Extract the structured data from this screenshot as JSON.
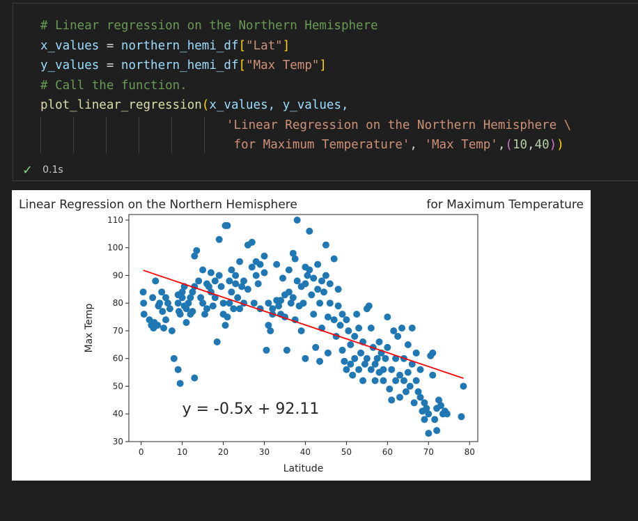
{
  "cell": {
    "line1": "# Linear regression on the Northern Hemisphere",
    "line2": {
      "var": "x_values",
      "eq": " = ",
      "obj": "northern_hemi_df",
      "open": "[",
      "key": "\"Lat\"",
      "close": "]"
    },
    "line3": {
      "var": "y_values",
      "eq": " = ",
      "obj": "northern_hemi_df",
      "open": "[",
      "key": "\"Max Temp\"",
      "close": "]"
    },
    "line4": "# Call the function.",
    "line5": {
      "fn": "plot_linear_regression",
      "open": "(",
      "args": "x_values, y_values,"
    },
    "line6": "'Linear Regression on the Northern Hemisphere \\",
    "line7": {
      "str": " for Maximum Temperature'",
      "sep1": ", ",
      "str2": "'Max Temp'",
      "sep2": ",",
      "open": "(",
      "n1": "10",
      "comma": ",",
      "n2": "40",
      "close1": ")",
      "close2": ")"
    },
    "status_check": "✓",
    "exec_time": "0.1s"
  },
  "chart_data": {
    "type": "scatter",
    "title_left": "Linear Regression on the Northern Hemisphere",
    "title_right": "for Maximum Temperature",
    "xlabel": "Latitude",
    "ylabel": "Max Temp",
    "xlim": [
      -3,
      82
    ],
    "ylim": [
      30,
      112
    ],
    "xticks": [
      0,
      10,
      20,
      30,
      40,
      50,
      60,
      70,
      80
    ],
    "yticks": [
      30,
      40,
      50,
      60,
      70,
      80,
      90,
      100,
      110
    ],
    "point_color": "#1f77b4",
    "line_color": "#ff0000",
    "regression": {
      "slope": -0.5,
      "intercept": 92.11,
      "x_start": 0.5,
      "x_end": 78.5
    },
    "equation": "y = -0.5x + 92.11",
    "equation_pos": [
      10,
      40
    ],
    "points": [
      [
        0.5,
        84
      ],
      [
        0.6,
        80
      ],
      [
        0.7,
        76
      ],
      [
        2,
        74
      ],
      [
        2.5,
        72
      ],
      [
        3,
        71
      ],
      [
        3.2,
        73
      ],
      [
        2.8,
        82
      ],
      [
        3.5,
        88
      ],
      [
        4,
        72
      ],
      [
        4.2,
        79
      ],
      [
        4.5,
        80
      ],
      [
        5,
        84
      ],
      [
        5.2,
        77
      ],
      [
        5.5,
        71
      ],
      [
        6,
        82
      ],
      [
        6,
        74
      ],
      [
        6.5,
        80
      ],
      [
        7,
        78
      ],
      [
        7.5,
        70
      ],
      [
        8,
        60
      ],
      [
        9,
        56
      ],
      [
        9.5,
        51
      ],
      [
        9,
        83
      ],
      [
        9,
        80
      ],
      [
        9.2,
        77
      ],
      [
        9.5,
        76
      ],
      [
        10,
        84
      ],
      [
        10,
        82
      ],
      [
        10.5,
        86
      ],
      [
        10.5,
        79
      ],
      [
        11,
        78
      ],
      [
        11,
        73
      ],
      [
        11.5,
        80
      ],
      [
        12,
        82
      ],
      [
        12,
        76
      ],
      [
        12.5,
        84
      ],
      [
        12.5,
        77
      ],
      [
        13,
        86
      ],
      [
        13,
        97
      ],
      [
        13.5,
        99
      ],
      [
        13,
        53
      ],
      [
        14,
        88
      ],
      [
        14.5,
        82
      ],
      [
        15,
        92
      ],
      [
        15,
        80
      ],
      [
        15.5,
        76
      ],
      [
        16,
        87
      ],
      [
        16,
        78
      ],
      [
        16.5,
        86
      ],
      [
        17,
        91
      ],
      [
        17,
        84
      ],
      [
        17.5,
        79
      ],
      [
        18,
        88
      ],
      [
        18,
        82
      ],
      [
        18.5,
        66
      ],
      [
        19,
        103
      ],
      [
        19,
        90
      ],
      [
        19.5,
        86
      ],
      [
        20,
        80
      ],
      [
        20,
        76
      ],
      [
        20.5,
        108
      ],
      [
        21,
        108
      ],
      [
        20.5,
        72
      ],
      [
        21,
        75
      ],
      [
        21.5,
        88
      ],
      [
        21.5,
        80
      ],
      [
        22,
        92
      ],
      [
        22,
        84
      ],
      [
        22.5,
        78
      ],
      [
        23,
        90
      ],
      [
        23,
        87
      ],
      [
        23.5,
        82
      ],
      [
        24,
        95
      ],
      [
        24,
        78
      ],
      [
        24.5,
        86
      ],
      [
        25,
        88
      ],
      [
        25,
        80
      ],
      [
        26,
        101
      ],
      [
        26,
        85
      ],
      [
        27,
        102
      ],
      [
        27,
        93
      ],
      [
        27.5,
        80
      ],
      [
        28,
        95
      ],
      [
        28,
        90
      ],
      [
        28.5,
        87
      ],
      [
        29,
        94
      ],
      [
        29,
        78
      ],
      [
        30,
        97
      ],
      [
        30,
        91
      ],
      [
        30.5,
        63
      ],
      [
        31,
        80
      ],
      [
        31,
        72
      ],
      [
        31.5,
        70
      ],
      [
        32,
        78
      ],
      [
        32,
        76
      ],
      [
        33,
        94
      ],
      [
        33,
        81
      ],
      [
        33.5,
        79
      ],
      [
        34,
        81
      ],
      [
        34,
        76
      ],
      [
        34.5,
        89
      ],
      [
        35,
        83
      ],
      [
        35,
        75
      ],
      [
        35.5,
        63
      ],
      [
        36,
        92
      ],
      [
        36,
        84
      ],
      [
        36.5,
        80
      ],
      [
        37,
        98
      ],
      [
        37,
        82
      ],
      [
        37.5,
        96
      ],
      [
        37.5,
        74
      ],
      [
        38,
        110
      ],
      [
        38,
        88
      ],
      [
        38.5,
        79
      ],
      [
        39,
        86
      ],
      [
        39,
        70
      ],
      [
        39.5,
        80
      ],
      [
        40,
        93
      ],
      [
        40,
        87
      ],
      [
        40,
        60
      ],
      [
        40.5,
        90
      ],
      [
        41,
        106
      ],
      [
        41,
        92
      ],
      [
        41.5,
        83
      ],
      [
        42,
        89
      ],
      [
        42,
        76
      ],
      [
        42.5,
        64
      ],
      [
        43,
        94
      ],
      [
        43,
        85
      ],
      [
        43.5,
        80
      ],
      [
        43.5,
        59
      ],
      [
        44,
        88
      ],
      [
        44,
        71
      ],
      [
        44.5,
        84
      ],
      [
        45,
        101
      ],
      [
        45,
        90
      ],
      [
        45.5,
        75
      ],
      [
        45.5,
        62
      ],
      [
        46,
        87
      ],
      [
        46,
        80
      ],
      [
        47,
        96
      ],
      [
        47,
        74
      ],
      [
        47.5,
        68
      ],
      [
        48,
        85
      ],
      [
        48,
        79
      ],
      [
        48.5,
        72
      ],
      [
        49,
        76
      ],
      [
        49,
        63
      ],
      [
        49.5,
        59
      ],
      [
        50,
        74
      ],
      [
        50,
        56
      ],
      [
        50.5,
        70
      ],
      [
        51,
        65
      ],
      [
        51,
        58
      ],
      [
        51.5,
        54
      ],
      [
        52,
        68
      ],
      [
        52,
        60
      ],
      [
        52.5,
        76
      ],
      [
        53,
        71
      ],
      [
        53,
        56
      ],
      [
        53.5,
        62
      ],
      [
        54,
        66
      ],
      [
        54,
        52
      ],
      [
        54.5,
        58
      ],
      [
        55,
        78
      ],
      [
        55,
        60
      ],
      [
        55.5,
        79
      ],
      [
        56,
        71
      ],
      [
        56,
        56
      ],
      [
        56.5,
        64
      ],
      [
        57,
        58
      ],
      [
        57,
        52
      ],
      [
        57.5,
        60
      ],
      [
        58,
        66
      ],
      [
        58,
        55
      ],
      [
        58.5,
        62
      ],
      [
        59,
        56
      ],
      [
        59,
        52
      ],
      [
        59.5,
        60
      ],
      [
        60,
        75
      ],
      [
        60,
        64
      ],
      [
        60.5,
        49
      ],
      [
        61,
        56
      ],
      [
        61,
        45
      ],
      [
        61.5,
        70
      ],
      [
        62,
        60
      ],
      [
        62,
        52
      ],
      [
        62.5,
        68
      ],
      [
        63,
        54
      ],
      [
        63,
        46
      ],
      [
        63.5,
        71
      ],
      [
        64,
        60
      ],
      [
        64,
        52
      ],
      [
        64.5,
        48
      ],
      [
        65,
        65
      ],
      [
        65,
        55
      ],
      [
        65.5,
        50
      ],
      [
        66,
        71
      ],
      [
        66,
        58
      ],
      [
        66.5,
        44
      ],
      [
        67,
        62
      ],
      [
        67,
        52
      ],
      [
        67.5,
        48
      ],
      [
        68,
        56
      ],
      [
        68,
        46
      ],
      [
        68.5,
        41
      ],
      [
        69,
        44
      ],
      [
        69,
        38
      ],
      [
        69.5,
        42
      ],
      [
        70,
        33
      ],
      [
        70,
        40
      ],
      [
        70.5,
        61
      ],
      [
        71,
        62
      ],
      [
        71,
        54
      ],
      [
        71.5,
        38
      ],
      [
        72,
        42
      ],
      [
        72,
        34
      ],
      [
        72.5,
        45
      ],
      [
        73,
        43
      ],
      [
        73.5,
        40
      ],
      [
        74,
        41
      ],
      [
        74.5,
        40
      ],
      [
        78,
        39
      ],
      [
        78.5,
        50
      ]
    ]
  }
}
